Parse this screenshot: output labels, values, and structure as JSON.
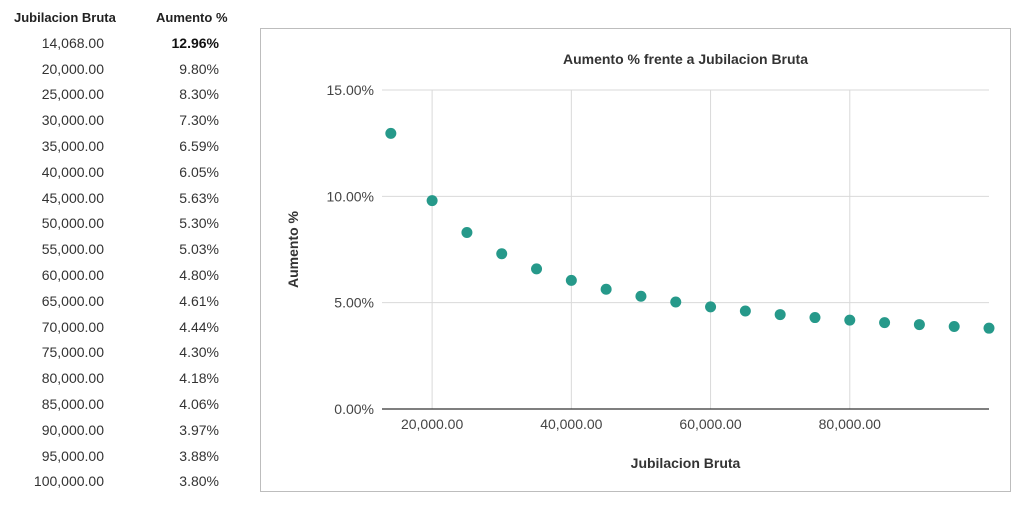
{
  "table": {
    "headers": [
      "Jubilacion Bruta",
      "Aumento %"
    ],
    "rows": [
      [
        "14,068.00",
        "12.96%"
      ],
      [
        "20,000.00",
        "9.80%"
      ],
      [
        "25,000.00",
        "8.30%"
      ],
      [
        "30,000.00",
        "7.30%"
      ],
      [
        "35,000.00",
        "6.59%"
      ],
      [
        "40,000.00",
        "6.05%"
      ],
      [
        "45,000.00",
        "5.63%"
      ],
      [
        "50,000.00",
        "5.30%"
      ],
      [
        "55,000.00",
        "5.03%"
      ],
      [
        "60,000.00",
        "4.80%"
      ],
      [
        "65,000.00",
        "4.61%"
      ],
      [
        "70,000.00",
        "4.44%"
      ],
      [
        "75,000.00",
        "4.30%"
      ],
      [
        "80,000.00",
        "4.18%"
      ],
      [
        "85,000.00",
        "4.06%"
      ],
      [
        "90,000.00",
        "3.97%"
      ],
      [
        "95,000.00",
        "3.88%"
      ],
      [
        "100,000.00",
        "3.80%"
      ]
    ]
  },
  "chart_data": {
    "type": "scatter",
    "title": "Aumento % frente a Jubilacion Bruta",
    "xlabel": "Jubilacion Bruta",
    "ylabel": "Aumento %",
    "x": [
      14068,
      20000,
      25000,
      30000,
      35000,
      40000,
      45000,
      50000,
      55000,
      60000,
      65000,
      70000,
      75000,
      80000,
      85000,
      90000,
      95000,
      100000
    ],
    "y": [
      12.96,
      9.8,
      8.3,
      7.3,
      6.59,
      6.05,
      5.63,
      5.3,
      5.03,
      4.8,
      4.61,
      4.44,
      4.3,
      4.18,
      4.06,
      3.97,
      3.88,
      3.8
    ],
    "xlim": [
      12800,
      100000
    ],
    "ylim": [
      0,
      15
    ],
    "xticks": [
      20000,
      40000,
      60000,
      80000
    ],
    "xtick_labels": [
      "20,000.00",
      "40,000.00",
      "60,000.00",
      "80,000.00"
    ],
    "yticks": [
      0,
      5,
      10,
      15
    ],
    "ytick_labels": [
      "0.00%",
      "5.00%",
      "10.00%",
      "15.00%"
    ],
    "grid": true,
    "legend": "none",
    "colors": {
      "marker": "#26998a",
      "grid": "#d9d9d9",
      "axis": "#333333"
    }
  }
}
